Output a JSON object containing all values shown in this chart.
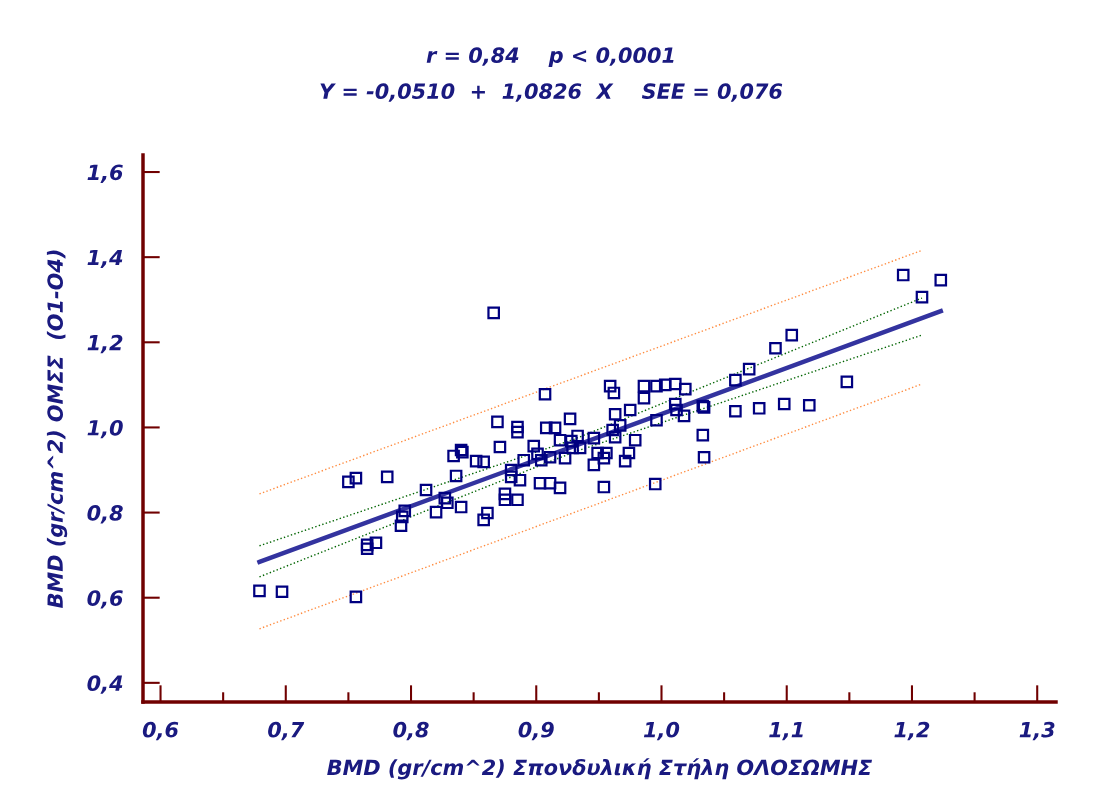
{
  "chart_data": {
    "type": "scatter",
    "title": "r = 0,84    p < 0,0001",
    "subtitle": "Y = -0,0510  +  1,0826  X    SEE = 0,076",
    "xlabel": "BMD (gr/cm^2) Σπονδυλική Στήλη ΟΛΟΣΩΜΗΣ",
    "ylabel": "BMD (gr/cm^2) ΟΜΣΣ  (Ο1-Ο4)",
    "xlim": [
      0.586,
      1.315
    ],
    "ylim": [
      0.355,
      1.64
    ],
    "xticks": [
      {
        "value": 0.6,
        "label": "0,6"
      },
      {
        "value": 0.7,
        "label": "0,7"
      },
      {
        "value": 0.8,
        "label": "0,8"
      },
      {
        "value": 0.9,
        "label": "0,9"
      },
      {
        "value": 1.0,
        "label": "1,0"
      },
      {
        "value": 1.1,
        "label": "1,1"
      },
      {
        "value": 1.2,
        "label": "1,2"
      },
      {
        "value": 1.3,
        "label": "1,3"
      }
    ],
    "yticks": [
      {
        "value": 0.4,
        "label": "0,4"
      },
      {
        "value": 0.6,
        "label": "0,6"
      },
      {
        "value": 0.8,
        "label": "0,8"
      },
      {
        "value": 1.0,
        "label": "1,0"
      },
      {
        "value": 1.2,
        "label": "1,2"
      },
      {
        "value": 1.4,
        "label": "1,4"
      },
      {
        "value": 1.6,
        "label": "1,6"
      }
    ],
    "grid": false,
    "legend": false,
    "series": [
      {
        "type": "scatter",
        "color": "#000080",
        "marker": "square",
        "x": [
          0.679,
          0.697,
          0.756,
          0.75,
          0.756,
          0.781,
          0.765,
          0.772,
          0.765,
          0.793,
          0.795,
          0.792,
          0.812,
          0.82,
          0.827,
          0.829,
          0.834,
          0.84,
          0.841,
          0.836,
          0.84,
          0.852,
          0.858,
          0.858,
          0.861,
          0.866,
          0.869,
          0.871,
          0.875,
          0.875,
          0.88,
          0.88,
          0.885,
          0.885,
          0.885,
          0.887,
          0.89,
          0.898,
          0.901,
          0.904,
          0.907,
          0.908,
          0.903,
          0.911,
          0.911,
          0.915,
          0.919,
          0.919,
          0.923,
          0.927,
          0.928,
          0.929,
          0.933,
          0.935,
          0.946,
          0.946,
          0.949,
          0.954,
          0.954,
          0.956,
          0.959,
          0.962,
          0.961,
          0.963,
          0.963,
          0.967,
          0.971,
          0.974,
          0.975,
          0.979,
          0.986,
          0.986,
          0.995,
          0.996,
          0.996,
          1.003,
          1.011,
          1.011,
          1.012,
          1.018,
          1.019,
          1.033,
          1.033,
          1.034,
          1.034,
          1.059,
          1.059,
          1.07,
          1.078,
          1.091,
          1.098,
          1.104,
          1.118,
          1.148,
          1.193,
          1.208,
          1.223
        ],
        "values": [
          0.616,
          0.614,
          0.602,
          0.872,
          0.881,
          0.884,
          0.724,
          0.729,
          0.715,
          0.79,
          0.804,
          0.769,
          0.853,
          0.801,
          0.834,
          0.823,
          0.933,
          0.947,
          0.942,
          0.886,
          0.813,
          0.921,
          0.919,
          0.783,
          0.799,
          1.269,
          1.013,
          0.954,
          0.844,
          0.83,
          0.9,
          0.884,
          0.989,
          1.001,
          0.83,
          0.876,
          0.923,
          0.956,
          0.938,
          0.923,
          1.078,
          0.999,
          0.869,
          0.869,
          0.93,
          0.999,
          0.97,
          0.858,
          0.928,
          1.02,
          0.968,
          0.952,
          0.98,
          0.952,
          0.975,
          0.912,
          0.94,
          0.86,
          0.928,
          0.94,
          1.097,
          1.081,
          0.994,
          1.031,
          0.977,
          1.005,
          0.921,
          0.94,
          1.041,
          0.97,
          1.097,
          1.069,
          0.867,
          1.097,
          1.017,
          1.1,
          1.102,
          1.055,
          1.041,
          1.027,
          1.09,
          1.05,
          0.982,
          0.93,
          1.047,
          1.111,
          1.038,
          1.137,
          1.045,
          1.186,
          1.055,
          1.217,
          1.052,
          1.107,
          1.358,
          1.306,
          1.346
        ]
      },
      {
        "type": "line",
        "color": "#33339f",
        "line_style": "solid",
        "x": [
          0.679,
          1.223
        ],
        "values": [
          0.684,
          1.273
        ]
      },
      {
        "type": "line",
        "color": "#006400",
        "line_style": "dotted",
        "x": [
          0.679,
          0.93,
          1.208
        ],
        "values": [
          0.722,
          0.972,
          1.304
        ]
      },
      {
        "type": "line",
        "color": "#006400",
        "line_style": "dotted",
        "x": [
          0.679,
          0.93,
          1.208
        ],
        "values": [
          0.649,
          0.942,
          1.217
        ]
      },
      {
        "type": "line",
        "color": "#ff8c40",
        "line_style": "dotted",
        "x": [
          0.679,
          1.208
        ],
        "values": [
          0.844,
          1.416
        ]
      },
      {
        "type": "line",
        "color": "#ff8c40",
        "line_style": "dotted",
        "x": [
          0.679,
          1.208
        ],
        "values": [
          0.527,
          1.102
        ]
      }
    ]
  }
}
